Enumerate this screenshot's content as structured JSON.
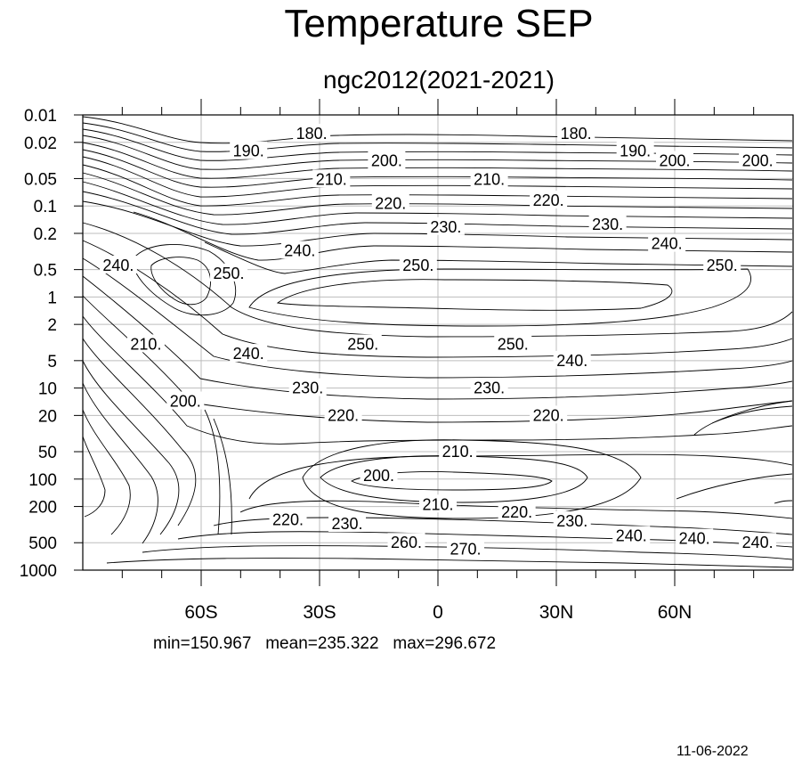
{
  "chart_data": {
    "type": "contour",
    "title": "Temperature SEP",
    "subtitle": "ngc2012(2021-2021)",
    "xaxis": {
      "type": "latitude",
      "range": [
        -90,
        90
      ],
      "ticks": [
        {
          "value": -60,
          "label": "60S"
        },
        {
          "value": -30,
          "label": "30S"
        },
        {
          "value": 0,
          "label": "0"
        },
        {
          "value": 30,
          "label": "30N"
        },
        {
          "value": 60,
          "label": "60N"
        }
      ]
    },
    "yaxis": {
      "type": "log-pressure",
      "reversed": true,
      "range": [
        0.01,
        1000
      ],
      "ticks": [
        "0.01",
        "0.02",
        "0.05",
        "0.1",
        "0.2",
        "0.5",
        "1",
        "2",
        "5",
        "10",
        "20",
        "50",
        "100",
        "200",
        "500",
        "1000"
      ]
    },
    "grid": true,
    "contour_labels": [
      {
        "text": "180.",
        "lat": -32.0,
        "p": 0.016
      },
      {
        "text": "180.",
        "lat": 35.0,
        "p": 0.016
      },
      {
        "text": "190.",
        "lat": -48.0,
        "p": 0.025
      },
      {
        "text": "190.",
        "lat": 50.0,
        "p": 0.025
      },
      {
        "text": "200.",
        "lat": -13.0,
        "p": 0.032
      },
      {
        "text": "200.",
        "lat": 60.0,
        "p": 0.032
      },
      {
        "text": "200.",
        "lat": 81.0,
        "p": 0.032
      },
      {
        "text": "210.",
        "lat": -27.0,
        "p": 0.051
      },
      {
        "text": "210.",
        "lat": 13.0,
        "p": 0.051
      },
      {
        "text": "220.",
        "lat": -12.0,
        "p": 0.094
      },
      {
        "text": "220.",
        "lat": 28.0,
        "p": 0.087
      },
      {
        "text": "230.",
        "lat": 2.0,
        "p": 0.17
      },
      {
        "text": "230.",
        "lat": 43.0,
        "p": 0.16
      },
      {
        "text": "240.",
        "lat": -35.0,
        "p": 0.31
      },
      {
        "text": "240.",
        "lat": 58.0,
        "p": 0.26
      },
      {
        "text": "240.",
        "lat": -81.0,
        "p": 0.45
      },
      {
        "text": "250.",
        "lat": -53.0,
        "p": 0.55
      },
      {
        "text": "250.",
        "lat": -5.0,
        "p": 0.45
      },
      {
        "text": "250.",
        "lat": 72.0,
        "p": 0.45
      },
      {
        "text": "250.",
        "lat": -19.0,
        "p": 3.3
      },
      {
        "text": "250.",
        "lat": 19.0,
        "p": 3.3
      },
      {
        "text": "240.",
        "lat": -48.0,
        "p": 4.2
      },
      {
        "text": "240.",
        "lat": 34.0,
        "p": 5.0
      },
      {
        "text": "230.",
        "lat": -33.0,
        "p": 10.0
      },
      {
        "text": "230.",
        "lat": 13.0,
        "p": 10.0
      },
      {
        "text": "210.",
        "lat": -74.0,
        "p": 3.3
      },
      {
        "text": "200.",
        "lat": -64.0,
        "p": 14.0
      },
      {
        "text": "220.",
        "lat": -24.0,
        "p": 20.0
      },
      {
        "text": "220.",
        "lat": 28.0,
        "p": 20.0
      },
      {
        "text": "210.",
        "lat": 5.0,
        "p": 50.0
      },
      {
        "text": "200.",
        "lat": -15.0,
        "p": 92.0
      },
      {
        "text": "210.",
        "lat": 0.0,
        "p": 190.0
      },
      {
        "text": "220.",
        "lat": 20.0,
        "p": 230.0
      },
      {
        "text": "220.",
        "lat": -38.0,
        "p": 280.0
      },
      {
        "text": "230.",
        "lat": -23.0,
        "p": 310.0
      },
      {
        "text": "230.",
        "lat": 34.0,
        "p": 290.0
      },
      {
        "text": "260.",
        "lat": -8.0,
        "p": 500.0
      },
      {
        "text": "270.",
        "lat": 7.0,
        "p": 590.0
      },
      {
        "text": "240.",
        "lat": 49.0,
        "p": 420.0
      },
      {
        "text": "240.",
        "lat": 65.0,
        "p": 450.0
      },
      {
        "text": "240.",
        "lat": 81.0,
        "p": 500.0
      }
    ]
  },
  "stats": "min=150.967   mean=235.322   max=296.672",
  "date": "11-06-2022"
}
